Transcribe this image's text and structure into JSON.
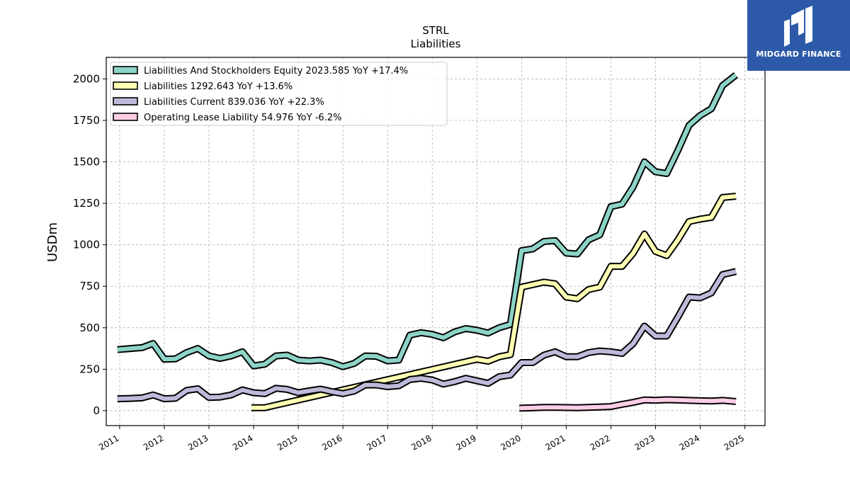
{
  "chart_data": {
    "type": "line",
    "title": "STRL",
    "subtitle": "Liabilities",
    "ylabel": "USDm",
    "xlim": [
      2010.7,
      2025.45
    ],
    "ylim": [
      -90,
      2130
    ],
    "yticks": [
      0,
      250,
      500,
      750,
      1000,
      1250,
      1500,
      1750,
      2000
    ],
    "xticks": [
      "2011",
      "2012",
      "2013",
      "2014",
      "2015",
      "2016",
      "2017",
      "2018",
      "2019",
      "2020",
      "2021",
      "2022",
      "2023",
      "2024",
      "2025"
    ],
    "grid": true,
    "legend_position": "top-left",
    "series": [
      {
        "name": "Liabilities And Stockholders Equity",
        "legend_label": "Liabilities And Stockholders Equity  2023.585 YoY +17.4%",
        "color": "#8dd3c7",
        "points": [
          [
            2010.95,
            368
          ],
          [
            2011.25,
            375
          ],
          [
            2011.5,
            380
          ],
          [
            2011.75,
            405
          ],
          [
            2012.0,
            310
          ],
          [
            2012.25,
            312
          ],
          [
            2012.5,
            350
          ],
          [
            2012.75,
            375
          ],
          [
            2013.0,
            330
          ],
          [
            2013.25,
            315
          ],
          [
            2013.5,
            330
          ],
          [
            2013.75,
            355
          ],
          [
            2014.0,
            270
          ],
          [
            2014.25,
            280
          ],
          [
            2014.5,
            330
          ],
          [
            2014.75,
            335
          ],
          [
            2015.0,
            305
          ],
          [
            2015.25,
            300
          ],
          [
            2015.5,
            305
          ],
          [
            2015.75,
            290
          ],
          [
            2016.0,
            265
          ],
          [
            2016.25,
            285
          ],
          [
            2016.5,
            330
          ],
          [
            2016.75,
            328
          ],
          [
            2017.0,
            300
          ],
          [
            2017.25,
            305
          ],
          [
            2017.5,
            455
          ],
          [
            2017.75,
            470
          ],
          [
            2018.0,
            460
          ],
          [
            2018.25,
            440
          ],
          [
            2018.5,
            475
          ],
          [
            2018.75,
            495
          ],
          [
            2019.0,
            485
          ],
          [
            2019.25,
            468
          ],
          [
            2019.5,
            500
          ],
          [
            2019.75,
            520
          ],
          [
            2020.0,
            965
          ],
          [
            2020.25,
            975
          ],
          [
            2020.5,
            1020
          ],
          [
            2020.75,
            1025
          ],
          [
            2021.0,
            950
          ],
          [
            2021.25,
            945
          ],
          [
            2021.5,
            1030
          ],
          [
            2021.75,
            1060
          ],
          [
            2022.0,
            1230
          ],
          [
            2022.25,
            1245
          ],
          [
            2022.5,
            1350
          ],
          [
            2022.75,
            1500
          ],
          [
            2023.0,
            1440
          ],
          [
            2023.25,
            1430
          ],
          [
            2023.5,
            1570
          ],
          [
            2023.75,
            1720
          ],
          [
            2024.0,
            1780
          ],
          [
            2024.25,
            1820
          ],
          [
            2024.5,
            1960
          ],
          [
            2024.8,
            2023.585
          ]
        ]
      },
      {
        "name": "Liabilities",
        "legend_label": "Liabilities  1292.643 YoY +13.6%",
        "color": "#ffffb3",
        "points": [
          [
            2013.95,
            18
          ],
          [
            2014.25,
            18
          ],
          [
            2019.0,
            310
          ],
          [
            2019.25,
            298
          ],
          [
            2019.5,
            325
          ],
          [
            2019.75,
            338
          ],
          [
            2020.0,
            745
          ],
          [
            2020.25,
            760
          ],
          [
            2020.5,
            775
          ],
          [
            2020.75,
            765
          ],
          [
            2021.0,
            685
          ],
          [
            2021.25,
            675
          ],
          [
            2021.5,
            730
          ],
          [
            2021.75,
            745
          ],
          [
            2022.0,
            870
          ],
          [
            2022.25,
            870
          ],
          [
            2022.5,
            950
          ],
          [
            2022.75,
            1065
          ],
          [
            2023.0,
            960
          ],
          [
            2023.25,
            935
          ],
          [
            2023.5,
            1030
          ],
          [
            2023.75,
            1140
          ],
          [
            2024.0,
            1155
          ],
          [
            2024.25,
            1165
          ],
          [
            2024.5,
            1285
          ],
          [
            2024.8,
            1292.643
          ]
        ]
      },
      {
        "name": "Liabilities Current",
        "legend_label": "Liabilities Current  839.036 YoY +22.3%",
        "color": "#bebada",
        "points": [
          [
            2010.95,
            72
          ],
          [
            2011.25,
            74
          ],
          [
            2011.5,
            77
          ],
          [
            2011.75,
            95
          ],
          [
            2012.0,
            72
          ],
          [
            2012.25,
            75
          ],
          [
            2012.5,
            122
          ],
          [
            2012.75,
            132
          ],
          [
            2013.0,
            80
          ],
          [
            2013.25,
            82
          ],
          [
            2013.5,
            95
          ],
          [
            2013.75,
            125
          ],
          [
            2014.0,
            108
          ],
          [
            2014.25,
            103
          ],
          [
            2014.5,
            135
          ],
          [
            2014.75,
            128
          ],
          [
            2015.0,
            108
          ],
          [
            2015.25,
            120
          ],
          [
            2015.5,
            130
          ],
          [
            2015.75,
            115
          ],
          [
            2016.0,
            103
          ],
          [
            2016.25,
            118
          ],
          [
            2016.5,
            155
          ],
          [
            2016.75,
            155
          ],
          [
            2017.0,
            145
          ],
          [
            2017.25,
            150
          ],
          [
            2017.5,
            188
          ],
          [
            2017.75,
            195
          ],
          [
            2018.0,
            185
          ],
          [
            2018.25,
            160
          ],
          [
            2018.5,
            175
          ],
          [
            2018.75,
            195
          ],
          [
            2019.0,
            180
          ],
          [
            2019.25,
            165
          ],
          [
            2019.5,
            205
          ],
          [
            2019.75,
            215
          ],
          [
            2020.0,
            290
          ],
          [
            2020.25,
            290
          ],
          [
            2020.5,
            335
          ],
          [
            2020.75,
            355
          ],
          [
            2021.0,
            325
          ],
          [
            2021.25,
            325
          ],
          [
            2021.5,
            350
          ],
          [
            2021.75,
            360
          ],
          [
            2022.0,
            355
          ],
          [
            2022.25,
            345
          ],
          [
            2022.5,
            405
          ],
          [
            2022.75,
            510
          ],
          [
            2023.0,
            450
          ],
          [
            2023.25,
            450
          ],
          [
            2023.5,
            565
          ],
          [
            2023.75,
            685
          ],
          [
            2024.0,
            680
          ],
          [
            2024.25,
            710
          ],
          [
            2024.5,
            820
          ],
          [
            2024.8,
            839.036
          ]
        ]
      },
      {
        "name": "Operating Lease Liability",
        "legend_label": "Operating Lease Liability  54.976 YoY -6.2%",
        "color": "#fccde5",
        "points": [
          [
            2019.95,
            15
          ],
          [
            2020.25,
            17
          ],
          [
            2020.5,
            20
          ],
          [
            2020.75,
            20
          ],
          [
            2021.0,
            19
          ],
          [
            2021.25,
            18
          ],
          [
            2021.5,
            20
          ],
          [
            2021.75,
            22
          ],
          [
            2022.0,
            25
          ],
          [
            2022.25,
            38
          ],
          [
            2022.5,
            50
          ],
          [
            2022.75,
            65
          ],
          [
            2023.0,
            63
          ],
          [
            2023.25,
            66
          ],
          [
            2023.5,
            64
          ],
          [
            2023.75,
            62
          ],
          [
            2024.0,
            60
          ],
          [
            2024.25,
            58
          ],
          [
            2024.5,
            62
          ],
          [
            2024.8,
            54.976
          ]
        ]
      }
    ]
  },
  "watermark": {
    "text": "MIDGARD FINANCE",
    "background": "#2d5aa8"
  }
}
